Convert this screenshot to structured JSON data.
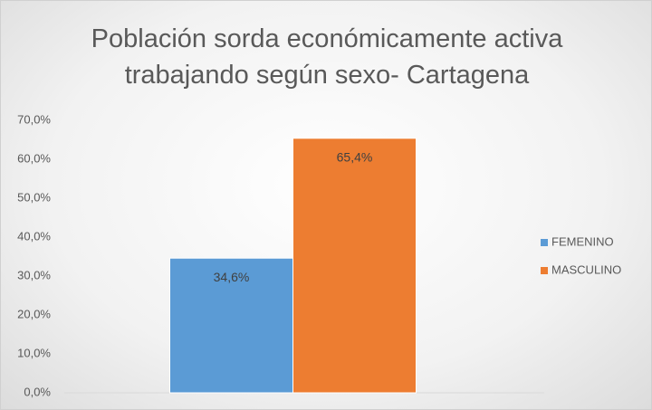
{
  "chart_data": {
    "type": "bar",
    "title": "Población sorda económicamente activa trabajando según sexo- Cartagena",
    "categories": [
      null
    ],
    "series": [
      {
        "name": "FEMENINO",
        "color": "#5b9bd5",
        "values": [
          34.6
        ],
        "value_labels": [
          "34,6%"
        ]
      },
      {
        "name": "MASCULINO",
        "color": "#ed7d31",
        "values": [
          65.4
        ],
        "value_labels": [
          "65,4%"
        ]
      }
    ],
    "ylim": [
      0,
      70
    ],
    "yticks": [
      {
        "value": 0,
        "label": "0,0%"
      },
      {
        "value": 10,
        "label": "10,0%"
      },
      {
        "value": 20,
        "label": "20,0%"
      },
      {
        "value": 30,
        "label": "30,0%"
      },
      {
        "value": 40,
        "label": "40,0%"
      },
      {
        "value": 50,
        "label": "50,0%"
      },
      {
        "value": 60,
        "label": "60,0%"
      },
      {
        "value": 70,
        "label": "70,0%"
      }
    ],
    "grid": false,
    "legend": "right"
  }
}
